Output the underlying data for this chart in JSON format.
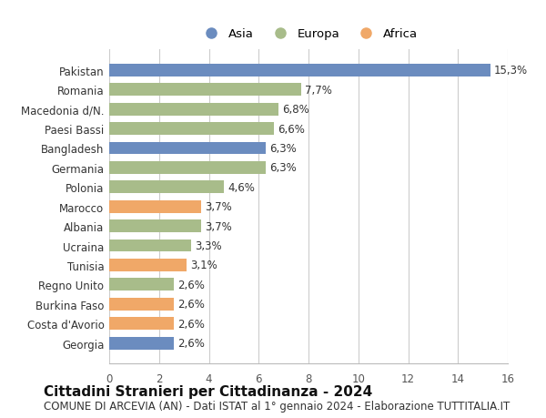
{
  "categories": [
    "Georgia",
    "Costa d'Avorio",
    "Burkina Faso",
    "Regno Unito",
    "Tunisia",
    "Ucraina",
    "Albania",
    "Marocco",
    "Polonia",
    "Germania",
    "Bangladesh",
    "Paesi Bassi",
    "Macedonia d/N.",
    "Romania",
    "Pakistan"
  ],
  "values": [
    2.6,
    2.6,
    2.6,
    2.6,
    3.1,
    3.3,
    3.7,
    3.7,
    4.6,
    6.3,
    6.3,
    6.6,
    6.8,
    7.7,
    15.3
  ],
  "colors": [
    "#6b8cbf",
    "#f0a868",
    "#f0a868",
    "#a8bc8a",
    "#f0a868",
    "#a8bc8a",
    "#a8bc8a",
    "#f0a868",
    "#a8bc8a",
    "#a8bc8a",
    "#6b8cbf",
    "#a8bc8a",
    "#a8bc8a",
    "#a8bc8a",
    "#6b8cbf"
  ],
  "labels": [
    "2,6%",
    "2,6%",
    "2,6%",
    "2,6%",
    "3,1%",
    "3,3%",
    "3,7%",
    "3,7%",
    "4,6%",
    "6,3%",
    "6,3%",
    "6,6%",
    "6,8%",
    "7,7%",
    "15,3%"
  ],
  "title": "Cittadini Stranieri per Cittadinanza - 2024",
  "subtitle": "COMUNE DI ARCEVIA (AN) - Dati ISTAT al 1° gennaio 2024 - Elaborazione TUTTITALIA.IT",
  "xlim": [
    0,
    16
  ],
  "xticks": [
    0,
    2,
    4,
    6,
    8,
    10,
    12,
    14,
    16
  ],
  "legend_labels": [
    "Asia",
    "Europa",
    "Africa"
  ],
  "legend_colors": [
    "#6b8cbf",
    "#a8bc8a",
    "#f0a868"
  ],
  "background_color": "#ffffff",
  "plot_bg_color": "#ffffff",
  "bar_height": 0.65,
  "title_fontsize": 11,
  "subtitle_fontsize": 8.5,
  "tick_fontsize": 8.5,
  "label_fontsize": 8.5,
  "legend_fontsize": 9.5
}
